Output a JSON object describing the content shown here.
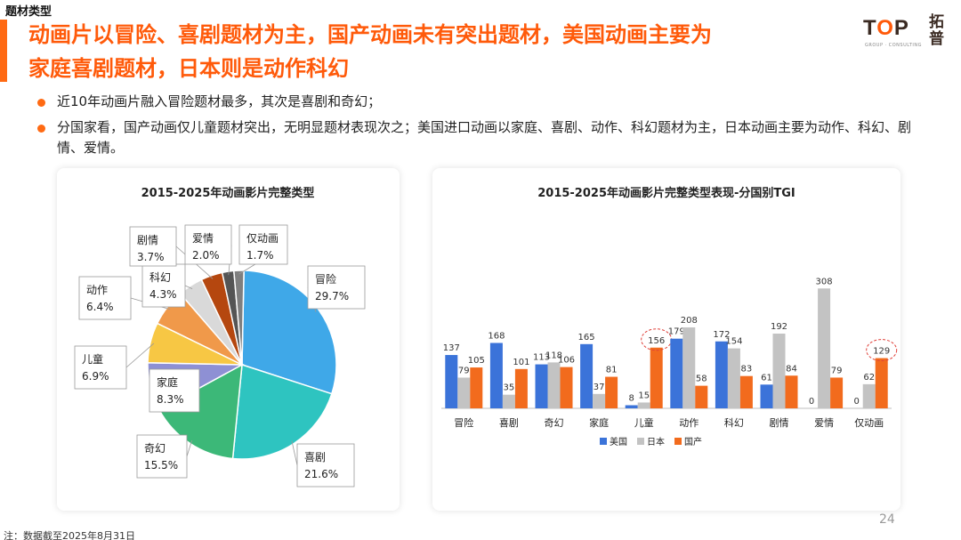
{
  "header": {
    "section_label": "题材类型",
    "title_line1": "动画片以冒险、喜剧题材为主，国产动画未有突出题材，美国动画主要为",
    "title_line2": "家庭喜剧题材，日本则是动作科幻",
    "accent_color": "#ff6a13"
  },
  "logo": {
    "text_t": "T",
    "text_o": "O",
    "text_p": "P",
    "cn_line1": "拓",
    "cn_line2": "普",
    "sub": "GROUP · CONSULTING"
  },
  "bullets": [
    "近10年动画片融入冒险题材最多，其次是喜剧和奇幻；",
    "分国家看，国产动画仅儿童题材突出，无明显题材表现次之；美国进口动画以家庭、喜剧、动作、科幻题材为主，日本动画主要为动作、科幻、剧情、爱情。"
  ],
  "chart_data": [
    {
      "type": "pie",
      "title": "2015-2025年动画影片完整类型",
      "slices": [
        {
          "label": "冒险",
          "value": 29.7,
          "display": "29.7%",
          "color": "#3fa8e8"
        },
        {
          "label": "喜剧",
          "value": 21.6,
          "display": "21.6%",
          "color": "#2ec4c0"
        },
        {
          "label": "奇幻",
          "value": 15.5,
          "display": "15.5%",
          "color": "#3cb878"
        },
        {
          "label": "家庭",
          "value": 8.3,
          "display": "8.3%",
          "color": "#8e90d4"
        },
        {
          "label": "儿童",
          "value": 6.9,
          "display": "6.9%",
          "color": "#f7c744"
        },
        {
          "label": "动作",
          "value": 6.4,
          "display": "6.4%",
          "color": "#f0994a"
        },
        {
          "label": "科幻",
          "value": 4.3,
          "display": "4.3%",
          "color": "#d9d9d9"
        },
        {
          "label": "剧情",
          "value": 3.7,
          "display": "3.7%",
          "color": "#b5470f"
        },
        {
          "label": "爱情",
          "value": 2.0,
          "display": "2.0%",
          "color": "#555555"
        },
        {
          "label": "仅动画",
          "value": 1.7,
          "display": "1.7%",
          "color": "#7f7f7f"
        }
      ]
    },
    {
      "type": "bar",
      "title": "2015-2025年动画影片完整类型表现-分国别TGI",
      "categories": [
        "冒险",
        "喜剧",
        "奇幻",
        "家庭",
        "儿童",
        "动作",
        "科幻",
        "剧情",
        "爱情",
        "仅动画"
      ],
      "series": [
        {
          "name": "美国",
          "color": "#3b73d9",
          "values": [
            137,
            168,
            113,
            165,
            8,
            179,
            172,
            61,
            0,
            0
          ]
        },
        {
          "name": "日本",
          "color": "#c3c3c3",
          "values": [
            79,
            35,
            118,
            37,
            15,
            208,
            154,
            192,
            308,
            62
          ]
        },
        {
          "name": "国产",
          "color": "#f26b1d",
          "values": [
            105,
            101,
            106,
            81,
            156,
            58,
            83,
            84,
            79,
            129
          ]
        }
      ],
      "highlighted": [
        "儿童 国产 156",
        "仅动画 国产 129"
      ],
      "ylim": [
        0,
        320
      ],
      "legend_position": "bottom"
    }
  ],
  "footer": {
    "page_number": "24",
    "note": "注：数据截至2025年8月31日"
  }
}
